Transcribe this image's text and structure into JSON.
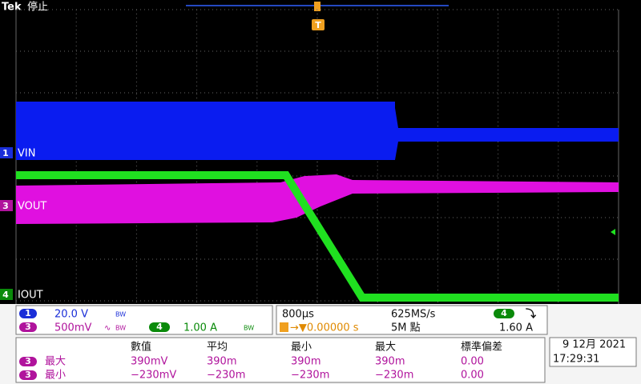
{
  "header": {
    "brand": "Tek",
    "status": "停止",
    "trigger_marker": "T"
  },
  "channels": [
    {
      "number": "1",
      "label": "VIN"
    },
    {
      "number": "3",
      "label": "VOUT"
    },
    {
      "number": "4",
      "label": "IOUT"
    }
  ],
  "vertical": {
    "ch1_scale": "20.0 V",
    "ch3_scale": "500mV",
    "ch3_coupling": "∿",
    "ch4_scale": "1.00 A",
    "bw": "BW"
  },
  "horizontal": {
    "time_scale": "800µs",
    "sample_rate": "625MS/s",
    "trigger_source": "4",
    "trigger_slope": "⤵",
    "trigger_position": "→▼0.00000 s",
    "record_length": "5M 點",
    "trigger_level": "1.60 A"
  },
  "measurements": {
    "headers": [
      "數值",
      "平均",
      "最小",
      "最大",
      "標準偏差"
    ],
    "rows": [
      {
        "channel": "3",
        "name": "最大",
        "values": [
          "390mV",
          "390m",
          "390m",
          "390m",
          "0.00"
        ]
      },
      {
        "channel": "3",
        "name": "最小",
        "values": [
          "−230mV",
          "−230m",
          "−230m",
          "−230m",
          "0.00"
        ]
      }
    ]
  },
  "datetime": {
    "date": "9 12月 2021",
    "time": "17:29:31"
  }
}
